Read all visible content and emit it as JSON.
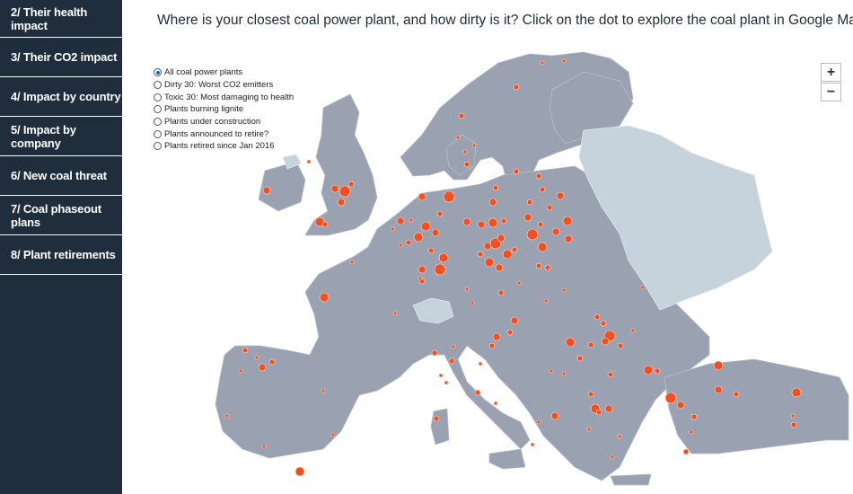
{
  "nav": {
    "items": [
      {
        "label": "2/ Their health impact"
      },
      {
        "label": "3/ Their CO2 impact"
      },
      {
        "label": "4/ Impact by country"
      },
      {
        "label": "5/ Impact by company"
      },
      {
        "label": "6/ New coal threat"
      },
      {
        "label": "7/ Coal phaseout plans"
      },
      {
        "label": "8/ Plant retirements"
      }
    ]
  },
  "header": {
    "title": "Where is your closest coal power plant, and how dirty is it? Click on the dot to explore the coal plant in Google Maps."
  },
  "filters": {
    "selected": "All coal power plants",
    "options": [
      "All coal power plants",
      "Dirty 30: Worst CO2 emitters",
      "Toxic 30: Most damaging to health",
      "Plants burning lignite",
      "Plants under construction",
      "Plants announced to retire?",
      "Plants retired since Jan 2016"
    ]
  },
  "zoom": {
    "in_label": "+",
    "out_label": "−"
  },
  "map": {
    "colors": {
      "land": "#9aa1b1",
      "land_other": "#c7d3dc",
      "sea": "#ffffff",
      "plant": "#f25022",
      "plant_stroke": "#fbe2d8",
      "sidebar": "#1f2d3d"
    },
    "marker_icon": "plant-dot-icon"
  }
}
